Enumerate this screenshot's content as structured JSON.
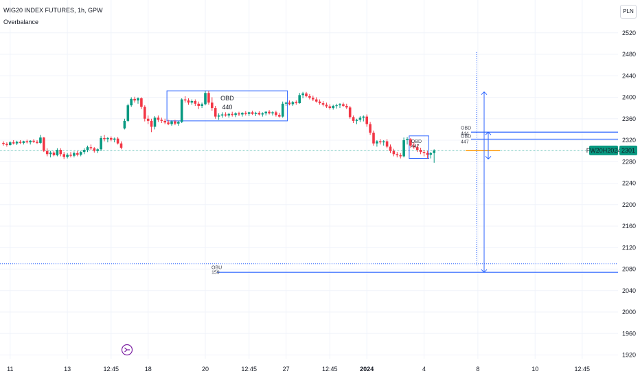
{
  "header": {
    "symbol_line": "WIG20 INDEX FUTURES, 1h, GPW",
    "indicator_name": "Overbalance",
    "currency_button": "PLN"
  },
  "colors": {
    "up": "#089981",
    "down": "#f23645",
    "blue": "#2962ff",
    "last_price_line": "#26a69a",
    "orange": "#ff9800",
    "grid": "#f0f3fa"
  },
  "chart_data": {
    "type": "candlestick",
    "symbol": "WIG20 INDEX FUTURES",
    "interval": "1h",
    "exchange": "GPW",
    "currency": "PLN",
    "y_ticks": [
      1920,
      1960,
      2000,
      2040,
      2080,
      2120,
      2160,
      2200,
      2240,
      2280,
      2320,
      2360,
      2400,
      2440,
      2480,
      2520
    ],
    "ylim": [
      1905,
      2550
    ],
    "x_ticks": [
      {
        "label": "11",
        "i": 2
      },
      {
        "label": "13",
        "i": 19
      },
      {
        "label": "12:45",
        "i": 32
      },
      {
        "label": "18",
        "i": 43
      },
      {
        "label": "20",
        "i": 60
      },
      {
        "label": "12:45",
        "i": 73
      },
      {
        "label": "27",
        "i": 84
      },
      {
        "label": "12:45",
        "i": 97
      },
      {
        "label": "2024",
        "i": 108,
        "bold": true
      },
      {
        "label": "4",
        "i": 125
      },
      {
        "label": "8",
        "i": 141
      },
      {
        "label": "10",
        "i": 158
      },
      {
        "label": "12:45",
        "i": 172
      }
    ],
    "candles": [
      {
        "o": 2315,
        "h": 2318,
        "l": 2310,
        "c": 2313
      },
      {
        "o": 2313,
        "h": 2316,
        "l": 2308,
        "c": 2311
      },
      {
        "o": 2311,
        "h": 2318,
        "l": 2310,
        "c": 2316
      },
      {
        "o": 2316,
        "h": 2320,
        "l": 2312,
        "c": 2314
      },
      {
        "o": 2314,
        "h": 2319,
        "l": 2311,
        "c": 2317
      },
      {
        "o": 2317,
        "h": 2320,
        "l": 2313,
        "c": 2315
      },
      {
        "o": 2315,
        "h": 2319,
        "l": 2312,
        "c": 2318
      },
      {
        "o": 2318,
        "h": 2321,
        "l": 2314,
        "c": 2316
      },
      {
        "o": 2316,
        "h": 2320,
        "l": 2312,
        "c": 2319
      },
      {
        "o": 2319,
        "h": 2322,
        "l": 2315,
        "c": 2317
      },
      {
        "o": 2317,
        "h": 2320,
        "l": 2313,
        "c": 2315
      },
      {
        "o": 2315,
        "h": 2330,
        "l": 2313,
        "c": 2325
      },
      {
        "o": 2325,
        "h": 2326,
        "l": 2298,
        "c": 2300
      },
      {
        "o": 2300,
        "h": 2305,
        "l": 2290,
        "c": 2294
      },
      {
        "o": 2294,
        "h": 2300,
        "l": 2288,
        "c": 2297
      },
      {
        "o": 2297,
        "h": 2300,
        "l": 2290,
        "c": 2292
      },
      {
        "o": 2292,
        "h": 2305,
        "l": 2290,
        "c": 2302
      },
      {
        "o": 2302,
        "h": 2305,
        "l": 2290,
        "c": 2294
      },
      {
        "o": 2294,
        "h": 2298,
        "l": 2285,
        "c": 2289
      },
      {
        "o": 2289,
        "h": 2296,
        "l": 2286,
        "c": 2293
      },
      {
        "o": 2293,
        "h": 2298,
        "l": 2288,
        "c": 2291
      },
      {
        "o": 2291,
        "h": 2299,
        "l": 2288,
        "c": 2296
      },
      {
        "o": 2296,
        "h": 2300,
        "l": 2290,
        "c": 2293
      },
      {
        "o": 2293,
        "h": 2300,
        "l": 2290,
        "c": 2298
      },
      {
        "o": 2298,
        "h": 2305,
        "l": 2294,
        "c": 2302
      },
      {
        "o": 2302,
        "h": 2310,
        "l": 2298,
        "c": 2307
      },
      {
        "o": 2307,
        "h": 2312,
        "l": 2302,
        "c": 2305
      },
      {
        "o": 2305,
        "h": 2307,
        "l": 2297,
        "c": 2300
      },
      {
        "o": 2300,
        "h": 2305,
        "l": 2296,
        "c": 2303
      },
      {
        "o": 2303,
        "h": 2328,
        "l": 2300,
        "c": 2324
      },
      {
        "o": 2324,
        "h": 2330,
        "l": 2318,
        "c": 2322
      },
      {
        "o": 2322,
        "h": 2326,
        "l": 2316,
        "c": 2324
      },
      {
        "o": 2324,
        "h": 2327,
        "l": 2318,
        "c": 2321
      },
      {
        "o": 2321,
        "h": 2325,
        "l": 2316,
        "c": 2323
      },
      {
        "o": 2323,
        "h": 2326,
        "l": 2312,
        "c": 2314
      },
      {
        "o": 2314,
        "h": 2318,
        "l": 2303,
        "c": 2306
      },
      {
        "o": 2342,
        "h": 2360,
        "l": 2340,
        "c": 2356
      },
      {
        "o": 2356,
        "h": 2388,
        "l": 2354,
        "c": 2385
      },
      {
        "o": 2385,
        "h": 2400,
        "l": 2382,
        "c": 2397
      },
      {
        "o": 2397,
        "h": 2401,
        "l": 2390,
        "c": 2394
      },
      {
        "o": 2394,
        "h": 2400,
        "l": 2388,
        "c": 2398
      },
      {
        "o": 2398,
        "h": 2400,
        "l": 2378,
        "c": 2382
      },
      {
        "o": 2382,
        "h": 2385,
        "l": 2355,
        "c": 2360
      },
      {
        "o": 2360,
        "h": 2366,
        "l": 2350,
        "c": 2356
      },
      {
        "o": 2356,
        "h": 2360,
        "l": 2335,
        "c": 2345
      },
      {
        "o": 2345,
        "h": 2365,
        "l": 2340,
        "c": 2362
      },
      {
        "o": 2362,
        "h": 2366,
        "l": 2354,
        "c": 2358
      },
      {
        "o": 2358,
        "h": 2362,
        "l": 2352,
        "c": 2356
      },
      {
        "o": 2356,
        "h": 2360,
        "l": 2350,
        "c": 2353
      },
      {
        "o": 2353,
        "h": 2358,
        "l": 2348,
        "c": 2350
      },
      {
        "o": 2350,
        "h": 2357,
        "l": 2347,
        "c": 2355
      },
      {
        "o": 2355,
        "h": 2358,
        "l": 2348,
        "c": 2351
      },
      {
        "o": 2351,
        "h": 2356,
        "l": 2347,
        "c": 2354
      },
      {
        "o": 2354,
        "h": 2398,
        "l": 2352,
        "c": 2396
      },
      {
        "o": 2396,
        "h": 2402,
        "l": 2390,
        "c": 2394
      },
      {
        "o": 2394,
        "h": 2398,
        "l": 2386,
        "c": 2390
      },
      {
        "o": 2390,
        "h": 2396,
        "l": 2386,
        "c": 2393
      },
      {
        "o": 2393,
        "h": 2396,
        "l": 2384,
        "c": 2388
      },
      {
        "o": 2388,
        "h": 2392,
        "l": 2378,
        "c": 2384
      },
      {
        "o": 2384,
        "h": 2390,
        "l": 2380,
        "c": 2387
      },
      {
        "o": 2387,
        "h": 2412,
        "l": 2385,
        "c": 2408
      },
      {
        "o": 2408,
        "h": 2412,
        "l": 2386,
        "c": 2390
      },
      {
        "o": 2390,
        "h": 2400,
        "l": 2375,
        "c": 2380
      },
      {
        "o": 2380,
        "h": 2384,
        "l": 2360,
        "c": 2364
      },
      {
        "o": 2364,
        "h": 2370,
        "l": 2358,
        "c": 2366
      },
      {
        "o": 2366,
        "h": 2372,
        "l": 2362,
        "c": 2368
      },
      {
        "o": 2368,
        "h": 2372,
        "l": 2364,
        "c": 2366
      },
      {
        "o": 2366,
        "h": 2371,
        "l": 2362,
        "c": 2369
      },
      {
        "o": 2369,
        "h": 2373,
        "l": 2364,
        "c": 2367
      },
      {
        "o": 2367,
        "h": 2372,
        "l": 2363,
        "c": 2370
      },
      {
        "o": 2370,
        "h": 2373,
        "l": 2365,
        "c": 2368
      },
      {
        "o": 2368,
        "h": 2372,
        "l": 2364,
        "c": 2371
      },
      {
        "o": 2371,
        "h": 2374,
        "l": 2366,
        "c": 2369
      },
      {
        "o": 2369,
        "h": 2373,
        "l": 2365,
        "c": 2372
      },
      {
        "o": 2372,
        "h": 2375,
        "l": 2367,
        "c": 2369
      },
      {
        "o": 2369,
        "h": 2373,
        "l": 2365,
        "c": 2371
      },
      {
        "o": 2371,
        "h": 2374,
        "l": 2366,
        "c": 2368
      },
      {
        "o": 2368,
        "h": 2372,
        "l": 2364,
        "c": 2370
      },
      {
        "o": 2370,
        "h": 2374,
        "l": 2366,
        "c": 2373
      },
      {
        "o": 2373,
        "h": 2376,
        "l": 2368,
        "c": 2370
      },
      {
        "o": 2370,
        "h": 2374,
        "l": 2366,
        "c": 2372
      },
      {
        "o": 2372,
        "h": 2375,
        "l": 2364,
        "c": 2367
      },
      {
        "o": 2367,
        "h": 2371,
        "l": 2362,
        "c": 2364
      },
      {
        "o": 2364,
        "h": 2392,
        "l": 2362,
        "c": 2388
      },
      {
        "o": 2388,
        "h": 2392,
        "l": 2384,
        "c": 2390
      },
      {
        "o": 2390,
        "h": 2394,
        "l": 2385,
        "c": 2387
      },
      {
        "o": 2387,
        "h": 2393,
        "l": 2384,
        "c": 2391
      },
      {
        "o": 2391,
        "h": 2394,
        "l": 2386,
        "c": 2389
      },
      {
        "o": 2389,
        "h": 2408,
        "l": 2388,
        "c": 2404
      },
      {
        "o": 2404,
        "h": 2410,
        "l": 2398,
        "c": 2407
      },
      {
        "o": 2407,
        "h": 2410,
        "l": 2400,
        "c": 2402
      },
      {
        "o": 2402,
        "h": 2406,
        "l": 2396,
        "c": 2399
      },
      {
        "o": 2399,
        "h": 2403,
        "l": 2393,
        "c": 2396
      },
      {
        "o": 2396,
        "h": 2400,
        "l": 2390,
        "c": 2392
      },
      {
        "o": 2392,
        "h": 2396,
        "l": 2386,
        "c": 2389
      },
      {
        "o": 2389,
        "h": 2393,
        "l": 2383,
        "c": 2386
      },
      {
        "o": 2386,
        "h": 2390,
        "l": 2380,
        "c": 2383
      },
      {
        "o": 2383,
        "h": 2387,
        "l": 2377,
        "c": 2380
      },
      {
        "o": 2380,
        "h": 2386,
        "l": 2377,
        "c": 2384
      },
      {
        "o": 2384,
        "h": 2388,
        "l": 2379,
        "c": 2385
      },
      {
        "o": 2385,
        "h": 2389,
        "l": 2380,
        "c": 2387
      },
      {
        "o": 2387,
        "h": 2390,
        "l": 2382,
        "c": 2384
      },
      {
        "o": 2384,
        "h": 2388,
        "l": 2378,
        "c": 2381
      },
      {
        "o": 2381,
        "h": 2384,
        "l": 2360,
        "c": 2363
      },
      {
        "o": 2363,
        "h": 2366,
        "l": 2352,
        "c": 2356
      },
      {
        "o": 2356,
        "h": 2360,
        "l": 2350,
        "c": 2358
      },
      {
        "o": 2358,
        "h": 2365,
        "l": 2354,
        "c": 2362
      },
      {
        "o": 2362,
        "h": 2366,
        "l": 2355,
        "c": 2364
      },
      {
        "o": 2364,
        "h": 2368,
        "l": 2345,
        "c": 2350
      },
      {
        "o": 2350,
        "h": 2354,
        "l": 2330,
        "c": 2334
      },
      {
        "o": 2334,
        "h": 2338,
        "l": 2310,
        "c": 2314
      },
      {
        "o": 2314,
        "h": 2320,
        "l": 2308,
        "c": 2318
      },
      {
        "o": 2318,
        "h": 2322,
        "l": 2312,
        "c": 2316
      },
      {
        "o": 2316,
        "h": 2320,
        "l": 2310,
        "c": 2318
      },
      {
        "o": 2318,
        "h": 2322,
        "l": 2305,
        "c": 2308
      },
      {
        "o": 2308,
        "h": 2312,
        "l": 2296,
        "c": 2300
      },
      {
        "o": 2300,
        "h": 2304,
        "l": 2290,
        "c": 2294
      },
      {
        "o": 2294,
        "h": 2298,
        "l": 2288,
        "c": 2292
      },
      {
        "o": 2292,
        "h": 2296,
        "l": 2286,
        "c": 2290
      },
      {
        "o": 2290,
        "h": 2325,
        "l": 2288,
        "c": 2320
      },
      {
        "o": 2320,
        "h": 2326,
        "l": 2312,
        "c": 2322
      },
      {
        "o": 2322,
        "h": 2324,
        "l": 2306,
        "c": 2310
      },
      {
        "o": 2310,
        "h": 2316,
        "l": 2304,
        "c": 2307
      },
      {
        "o": 2307,
        "h": 2312,
        "l": 2298,
        "c": 2302
      },
      {
        "o": 2302,
        "h": 2306,
        "l": 2294,
        "c": 2298
      },
      {
        "o": 2298,
        "h": 2302,
        "l": 2290,
        "c": 2296
      },
      {
        "o": 2296,
        "h": 2300,
        "l": 2286,
        "c": 2293
      },
      {
        "o": 2293,
        "h": 2298,
        "l": 2286,
        "c": 2296
      },
      {
        "o": 2296,
        "h": 2303,
        "l": 2278,
        "c": 2301
      }
    ],
    "annotations": {
      "obd_box": {
        "label": "OBD",
        "sublabel": "440",
        "i0": 49,
        "i1": 84,
        "low": 2356,
        "high": 2412
      },
      "small_box": {
        "label": "OBD",
        "sublabel": "447",
        "i0": 121,
        "i1": 126,
        "low": 2286,
        "high": 2328
      },
      "right_levels": [
        {
          "value": 2335,
          "label": "OBD",
          "sublabel": "444"
        },
        {
          "value": 2322,
          "label": "OBD",
          "sublabel": "447"
        }
      ],
      "obu": {
        "label": "OBU",
        "sublabel": "159",
        "value": 2074,
        "dotted_value": 2090
      },
      "last_price": 2301,
      "ticker_label": "FW20H2024",
      "last_price_label": "2301",
      "arrows": [
        {
          "from": 2301,
          "to": 2410
        },
        {
          "from": 2301,
          "to": 2074
        },
        {
          "from": 2335,
          "to": 2285
        }
      ]
    }
  }
}
